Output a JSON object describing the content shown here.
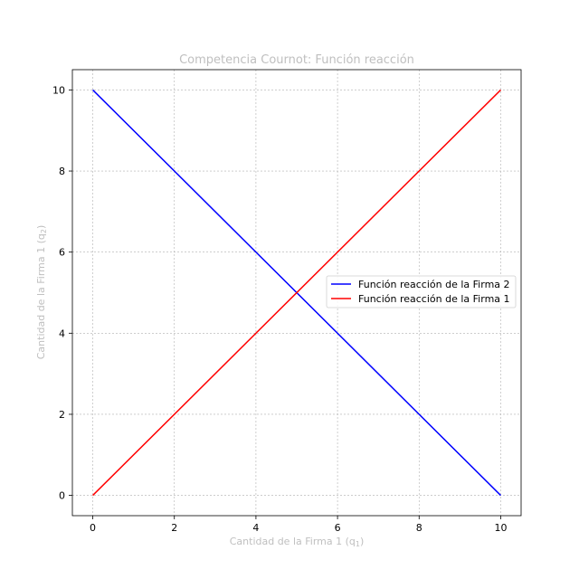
{
  "chart_data": {
    "type": "line",
    "title": "Competencia Cournot: Función reacción",
    "xlabel": "Cantidad de la Firma 1 (q",
    "xlabel_sub": "1",
    "xlabel_end": ")",
    "ylabel": "Cantidad de la Firma 1 (q",
    "ylabel_sub": "2",
    "ylabel_end": ")",
    "xlim": [
      -0.5,
      10.5
    ],
    "ylim": [
      -0.5,
      10.5
    ],
    "xticks": [
      0,
      2,
      4,
      6,
      8,
      10
    ],
    "yticks": [
      0,
      2,
      4,
      6,
      8,
      10
    ],
    "grid": true,
    "legend_position": "center-right",
    "series": [
      {
        "name": "Función reacción de la Firma 2",
        "color": "#0000ff",
        "x": [
          0,
          10
        ],
        "y": [
          10,
          0
        ]
      },
      {
        "name": "Función reacción de la Firma 1",
        "color": "#ff0000",
        "x": [
          0,
          10
        ],
        "y": [
          0,
          10
        ]
      }
    ]
  }
}
